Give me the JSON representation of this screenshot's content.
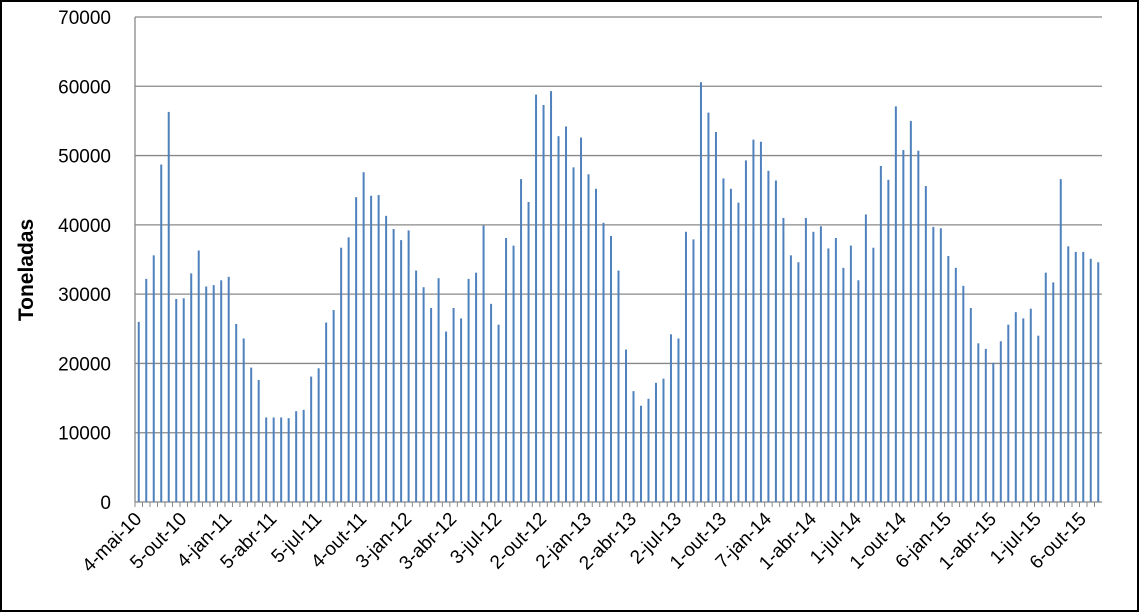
{
  "chart_data": {
    "type": "bar",
    "y_label": "Toneladas",
    "categories": [
      "4-mai-10",
      null,
      null,
      null,
      null,
      null,
      "5-out-10",
      null,
      null,
      null,
      null,
      null,
      "4-jan-11",
      null,
      null,
      null,
      null,
      null,
      "5-abr-11",
      null,
      null,
      null,
      null,
      null,
      "5-jul-11",
      null,
      null,
      null,
      null,
      null,
      "4-out-11",
      null,
      null,
      null,
      null,
      null,
      "3-jan-12",
      null,
      null,
      null,
      null,
      null,
      "3-abr-12",
      null,
      null,
      null,
      null,
      null,
      "3-jul-12",
      null,
      null,
      null,
      null,
      null,
      "2-out-12",
      null,
      null,
      null,
      null,
      null,
      "2-jan-13",
      null,
      null,
      null,
      null,
      null,
      "2-abr-13",
      null,
      null,
      null,
      null,
      null,
      "2-jul-13",
      null,
      null,
      null,
      null,
      null,
      "1-out-13",
      null,
      null,
      null,
      null,
      null,
      "7-jan-14",
      null,
      null,
      null,
      null,
      null,
      "1-abr-14",
      null,
      null,
      null,
      null,
      null,
      "1-jul-14",
      null,
      null,
      null,
      null,
      null,
      "1-out-14",
      null,
      null,
      null,
      null,
      null,
      "6-jan-15",
      null,
      null,
      null,
      null,
      null,
      "1-abr-15",
      null,
      null,
      null,
      null,
      null,
      "1-jul-15",
      null,
      null,
      null,
      null,
      null,
      "6-out-15",
      null,
      null
    ],
    "values": [
      26000,
      32200,
      35600,
      48700,
      56300,
      29300,
      29400,
      33000,
      36300,
      31100,
      31300,
      32000,
      32500,
      25700,
      23600,
      19400,
      17600,
      12200,
      12200,
      12200,
      12100,
      13100,
      13300,
      18100,
      19300,
      25900,
      27700,
      36700,
      38200,
      44000,
      47600,
      44200,
      44300,
      41300,
      39400,
      37800,
      39200,
      33400,
      31000,
      28000,
      32300,
      24600,
      28000,
      26500,
      32200,
      33100,
      39900,
      28600,
      25600,
      38100,
      37000,
      46600,
      43300,
      58800,
      57300,
      59300,
      52800,
      54200,
      48300,
      52600,
      47300,
      45200,
      40300,
      38400,
      33400,
      22000,
      16000,
      13900,
      14900,
      17200,
      17800,
      24200,
      23600,
      39000,
      37900,
      60600,
      56200,
      53400,
      46700,
      45200,
      43200,
      49300,
      52300,
      52000,
      47800,
      46400,
      41000,
      35600,
      34600,
      41000,
      39000,
      39800,
      36600,
      38100,
      33800,
      37000,
      32000,
      41500,
      36700,
      48500,
      46500,
      57100,
      50800,
      55000,
      50700,
      45600,
      39700,
      39500,
      35500,
      33800,
      31200,
      28000,
      22900,
      22100,
      20100,
      23200,
      25600,
      27400,
      26500,
      27900,
      24000,
      33100,
      31700,
      46600,
      36900,
      36100,
      36100,
      35100,
      34600
    ],
    "color": "#4f81bd",
    "ylim": [
      0,
      70000
    ],
    "yticks": [
      0,
      10000,
      20000,
      30000,
      40000,
      50000,
      60000,
      70000
    ],
    "grid": true
  }
}
